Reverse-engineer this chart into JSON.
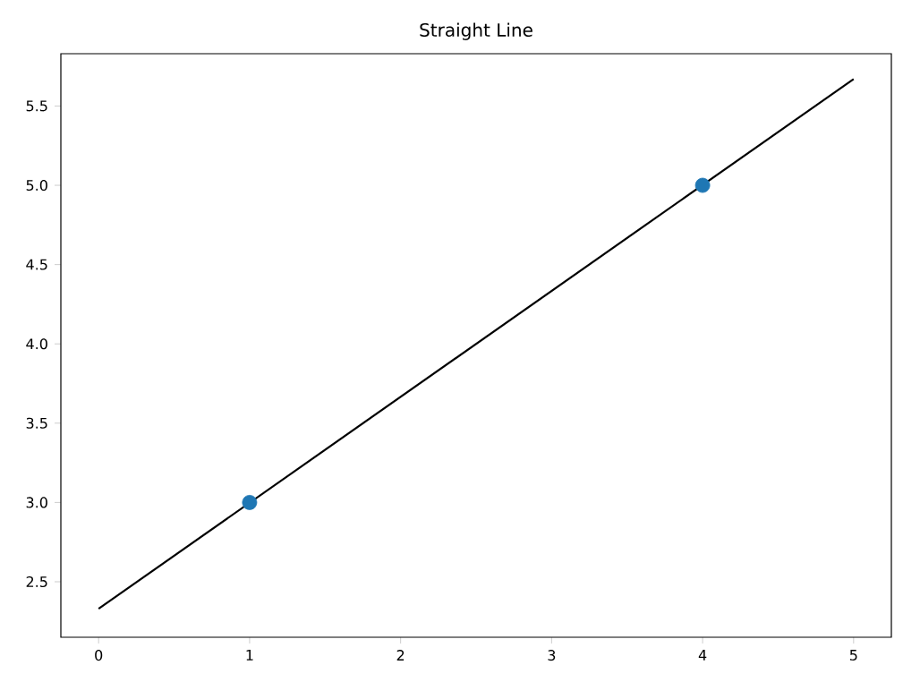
{
  "chart_data": {
    "type": "line",
    "title": "Straight Line",
    "xlim": [
      -0.25,
      5.25
    ],
    "ylim": [
      2.15,
      5.83
    ],
    "xticks": [
      0,
      1,
      2,
      3,
      4,
      5
    ],
    "yticks": [
      {
        "value": 2.5,
        "label": "2.5"
      },
      {
        "value": 3,
        "label": "3.0"
      },
      {
        "value": 3.5,
        "label": "3.5"
      },
      {
        "value": 4,
        "label": "4.0"
      },
      {
        "value": 4.5,
        "label": "4.5"
      },
      {
        "value": 5,
        "label": "5.0"
      },
      {
        "value": 5.5,
        "label": "5.5"
      }
    ],
    "series": [
      {
        "color": "#000000",
        "x": [
          0,
          5
        ],
        "values": [
          2.33,
          5.67
        ],
        "marker": "none"
      },
      {
        "type": "scatter",
        "color": "#1f77b4",
        "x": [
          1,
          4
        ],
        "values": [
          3,
          5
        ],
        "marker": "circle"
      }
    ]
  }
}
